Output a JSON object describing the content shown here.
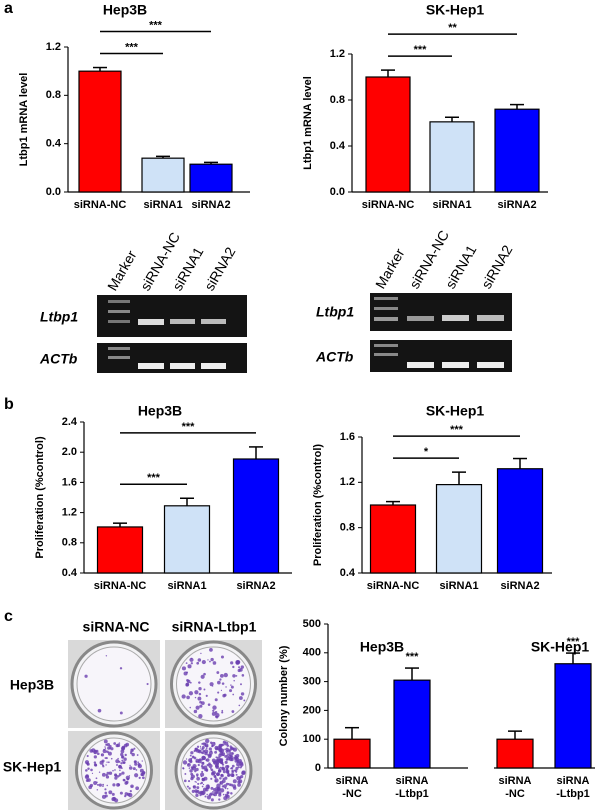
{
  "chart_data": [
    {
      "type": "bar",
      "title": "Hep3B",
      "ylabel": "Ltbp1 mRNA level",
      "categories": [
        "siRNA-NC",
        "siRNA1",
        "siRNA2"
      ],
      "values": [
        1.0,
        0.28,
        0.23
      ],
      "errors": [
        0.03,
        0.015,
        0.015
      ],
      "colors": [
        "#ff0000",
        "#cfe2f7",
        "#0000ff"
      ],
      "ylim": [
        0,
        1.2
      ],
      "yticks": [
        {
          "value": 0,
          "label": "0.0"
        },
        0.4,
        0.8,
        1.2
      ],
      "brackets": [
        {
          "text": "***",
          "between": [
            "siRNA-NC",
            "siRNA1"
          ]
        },
        {
          "text": "***",
          "between": [
            "siRNA-NC",
            "siRNA2"
          ]
        }
      ]
    },
    {
      "type": "bar",
      "title": "SK-Hep1",
      "ylabel": "Ltbp1 mRNA level",
      "categories": [
        "siRNA-NC",
        "siRNA1",
        "siRNA2"
      ],
      "values": [
        1.0,
        0.61,
        0.72
      ],
      "errors": [
        0.06,
        0.04,
        0.04
      ],
      "colors": [
        "#ff0000",
        "#cfe2f7",
        "#0000ff"
      ],
      "ylim": [
        0,
        1.2
      ],
      "yticks": [
        {
          "value": 0,
          "label": "0.0"
        },
        0.4,
        0.8,
        1.2
      ],
      "brackets": [
        {
          "text": "***",
          "between": [
            "siRNA-NC",
            "siRNA1"
          ]
        },
        {
          "text": "**",
          "between": [
            "siRNA-NC",
            "siRNA2"
          ]
        }
      ]
    },
    {
      "type": "bar",
      "title": "Hep3B",
      "ylabel": "Proliferation (%control)",
      "categories": [
        "siRNA-NC",
        "siRNA1",
        "siRNA2"
      ],
      "values": [
        1.01,
        1.29,
        1.91
      ],
      "errors": [
        0.05,
        0.1,
        0.16
      ],
      "colors": [
        "#ff0000",
        "#cfe2f7",
        "#0000ff"
      ],
      "ylim": [
        0.4,
        2.4
      ],
      "yticks": [
        0.4,
        0.8,
        1.2,
        1.6,
        {
          "value": 2,
          "label": "2.0"
        },
        2.4
      ],
      "brackets": [
        {
          "text": "***",
          "between": [
            "siRNA-NC",
            "siRNA1"
          ]
        },
        {
          "text": "***",
          "between": [
            "siRNA-NC",
            "siRNA2"
          ]
        }
      ]
    },
    {
      "type": "bar",
      "title": "SK-Hep1",
      "ylabel": "Proliferation (%control)",
      "categories": [
        "siRNA-NC",
        "siRNA1",
        "siRNA2"
      ],
      "values": [
        1.0,
        1.18,
        1.32
      ],
      "errors": [
        0.03,
        0.11,
        0.09
      ],
      "colors": [
        "#ff0000",
        "#cfe2f7",
        "#0000ff"
      ],
      "ylim": [
        0.4,
        1.6
      ],
      "yticks": [
        0.4,
        0.8,
        1.2,
        1.6
      ],
      "brackets": [
        {
          "text": "*",
          "between": [
            "siRNA-NC",
            "siRNA1"
          ]
        },
        {
          "text": "***",
          "between": [
            "siRNA-NC",
            "siRNA2"
          ]
        }
      ]
    },
    {
      "type": "bar",
      "ylabel": "Colony number (%)",
      "groups": [
        "Hep3B",
        "SK-Hep1"
      ],
      "categories": [
        [
          "siRNA",
          "-NC"
        ],
        [
          "siRNA",
          "-Ltbp1"
        ],
        [
          "siRNA",
          "-NC"
        ],
        [
          "siRNA",
          "-Ltbp1"
        ]
      ],
      "values": [
        100,
        305,
        100,
        362
      ],
      "errors": [
        40,
        42,
        28,
        37
      ],
      "colors": [
        "#ff0000",
        "#0000ff",
        "#ff0000",
        "#0000ff"
      ],
      "ylim": [
        0,
        500
      ],
      "yticks": [
        0,
        100,
        200,
        300,
        400,
        500
      ],
      "value_annotations": [
        null,
        "***",
        null,
        "***"
      ]
    }
  ],
  "panels": [
    "a",
    "b",
    "c"
  ],
  "gels": [
    {
      "lanes": [
        "Marker",
        "siRNA-NC",
        "siRNA1",
        "siRNA2"
      ],
      "rows": [
        "Ltbp1",
        "ACTb"
      ]
    },
    {
      "lanes": [
        "Marker",
        "siRNA-NC",
        "siRNA1",
        "siRNA2"
      ],
      "rows": [
        "Ltbp1",
        "ACTb"
      ]
    }
  ],
  "colony": {
    "columns": [
      "siRNA-NC",
      "siRNA-Ltbp1"
    ],
    "rows": [
      "Hep3B",
      "SK-Hep1"
    ]
  }
}
